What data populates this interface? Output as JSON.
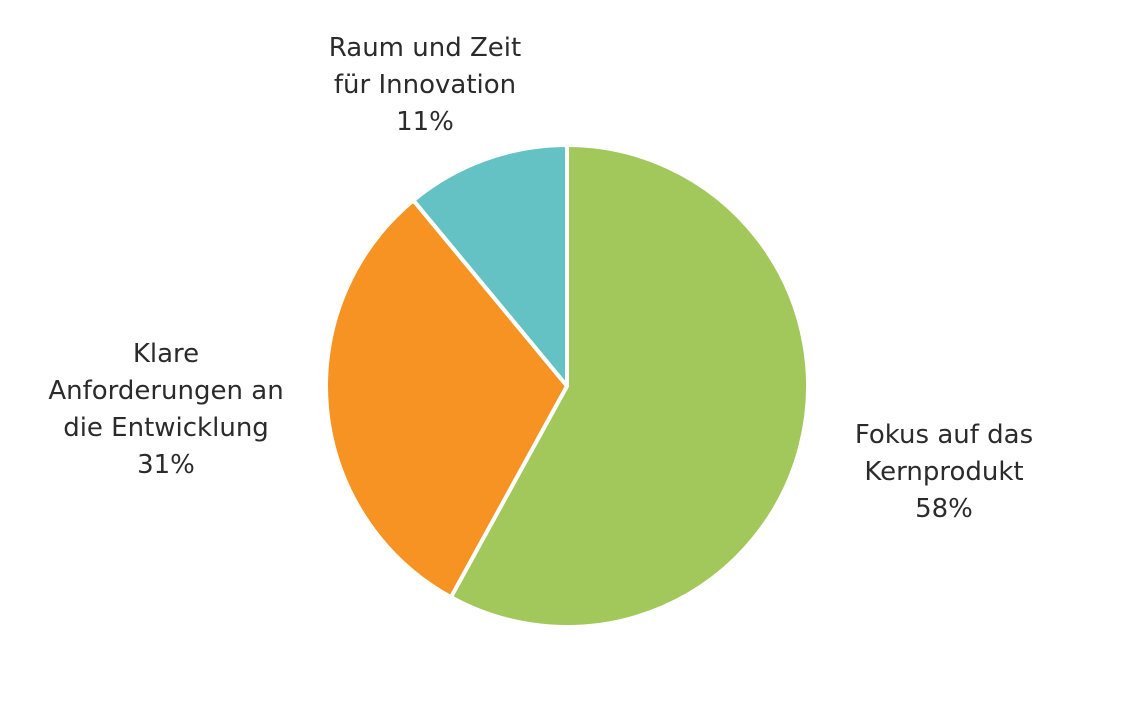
{
  "chart_data": {
    "type": "pie",
    "title": "",
    "slices": [
      {
        "label_lines": [
          "Fokus auf das",
          "Kernprodukt"
        ],
        "percent_label": "58%",
        "value": 58,
        "color": "#a2c75a"
      },
      {
        "label_lines": [
          "Klare",
          "Anforderungen an",
          "die Entwicklung"
        ],
        "percent_label": "31%",
        "value": 31,
        "color": "#f69322"
      },
      {
        "label_lines": [
          "Raum und Zeit",
          "für Innovation"
        ],
        "percent_label": "11%",
        "value": 11,
        "color": "#64c2c4"
      }
    ],
    "start_angle": "12 o'clock",
    "direction": "clockwise",
    "legend": "none",
    "slice_border_color": "#ffffff"
  }
}
